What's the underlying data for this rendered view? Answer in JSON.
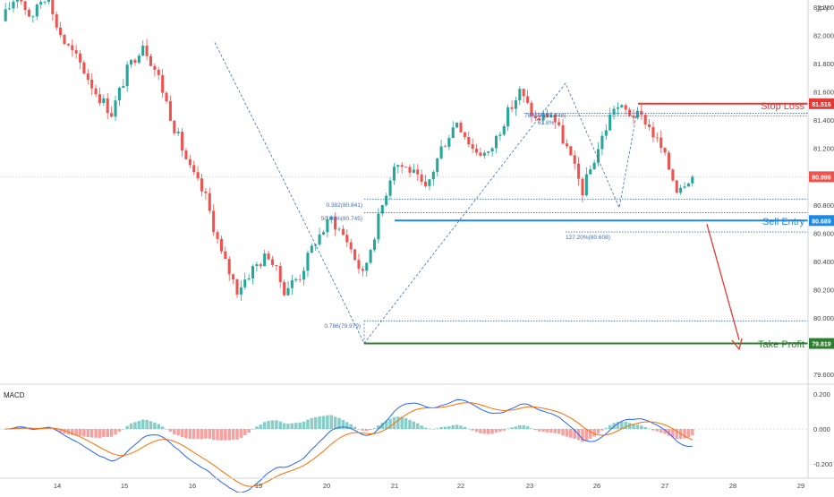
{
  "currency_label": "JPY",
  "annotations": {
    "stop_loss": "Stop Loss",
    "sell_entry": "Sell Entry",
    "take_profit": "Take Profit"
  },
  "fib_labels": {
    "f382": "0.382(80.841)",
    "f500": "50.00%(80.745)",
    "f786": "0.786(79.979)",
    "f786b": "78.60%(81.448)",
    "f618": "61.8%",
    "f1272": "127.20%(80.608)"
  },
  "colors": {
    "bull": "#26a69a",
    "bear": "#ef5350",
    "stop_loss": "#e53935",
    "sell_entry": "#1e88e5",
    "take_profit": "#2e7d32",
    "macd_line": "#2962ff",
    "signal_line": "#ff6d00",
    "current_price": "#ef5350"
  },
  "chart_data": [
    {
      "type": "candlestick",
      "title": "",
      "ylabel": "JPY",
      "x_ticks": [
        "14",
        "15",
        "16",
        "19",
        "20",
        "21",
        "22",
        "23",
        "26",
        "27",
        "28",
        "29"
      ],
      "y_ticks": [
        "82.200",
        "82.000",
        "81.800",
        "81.600",
        "81.400",
        "81.200",
        "81.000",
        "80.800",
        "80.600",
        "80.400",
        "80.200",
        "80.000",
        "79.800",
        "79.600"
      ],
      "ylim": [
        79.55,
        82.25
      ],
      "price_labels": {
        "stop_loss": "81.516",
        "current": "80.999",
        "sell_entry": "80.689",
        "take_profit": "79.819"
      },
      "levels": {
        "stop_loss": 81.516,
        "current": 80.999,
        "sell_entry": 80.689,
        "take_profit": 79.819,
        "fib_382": 80.841,
        "fib_500": 80.745,
        "fib_786": 79.979,
        "fib_786b": 81.448,
        "fib_618": 81.43,
        "fib_1272": 80.608
      },
      "ohlc_path": [
        [
          82.1,
          82.3
        ],
        [
          82.3,
          82.1
        ],
        [
          82.2,
          82.3
        ],
        [
          82.2,
          81.95
        ],
        [
          81.95,
          81.8
        ],
        [
          81.8,
          81.6
        ],
        [
          81.6,
          81.45
        ],
        [
          81.45,
          81.75
        ],
        [
          81.75,
          81.95
        ],
        [
          81.95,
          81.7
        ],
        [
          81.7,
          81.35
        ],
        [
          81.35,
          81.05
        ],
        [
          81.05,
          80.85
        ],
        [
          80.85,
          80.45
        ],
        [
          80.45,
          80.2
        ],
        [
          80.2,
          80.35
        ],
        [
          80.35,
          80.45
        ],
        [
          80.45,
          80.2
        ],
        [
          80.2,
          80.3
        ],
        [
          80.3,
          80.55
        ],
        [
          80.55,
          80.7
        ],
        [
          80.7,
          80.55
        ],
        [
          80.55,
          80.3
        ],
        [
          80.3,
          80.7
        ],
        [
          80.7,
          81.1
        ],
        [
          81.1,
          81.05
        ],
        [
          81.05,
          80.9
        ],
        [
          80.9,
          81.2
        ],
        [
          81.2,
          81.4
        ],
        [
          81.4,
          81.2
        ],
        [
          81.2,
          81.15
        ],
        [
          81.15,
          81.4
        ],
        [
          81.4,
          81.6
        ],
        [
          81.6,
          81.4
        ],
        [
          81.4,
          81.45
        ],
        [
          81.45,
          81.2
        ],
        [
          81.2,
          80.9
        ],
        [
          80.9,
          81.2
        ],
        [
          81.2,
          81.5
        ],
        [
          81.5,
          81.45
        ],
        [
          81.45,
          81.4
        ],
        [
          81.4,
          81.2
        ],
        [
          81.2,
          80.92
        ],
        [
          80.92,
          81.02
        ]
      ]
    },
    {
      "type": "histogram",
      "title": "MACD",
      "y_ticks": [
        "0.200",
        "0.000",
        "-0.200"
      ],
      "ylim": [
        -0.26,
        0.24
      ]
    }
  ]
}
